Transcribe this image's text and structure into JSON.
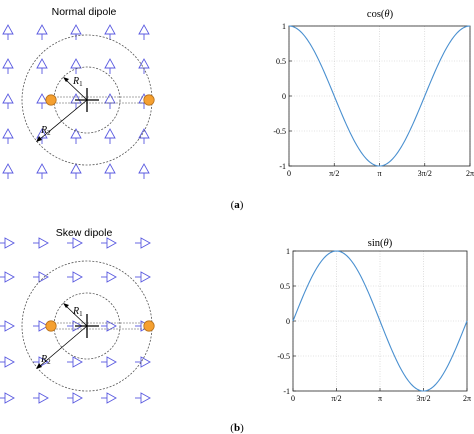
{
  "panels": [
    {
      "caption_open": "(",
      "caption_letter": "a",
      "caption_close": ")",
      "dipole_title": "Normal dipole",
      "arrow_direction": "up",
      "radius_labels": [
        {
          "letter": "R",
          "sub": "1"
        },
        {
          "letter": "R",
          "sub": "2"
        }
      ],
      "plot": {
        "title_pre": "cos(",
        "title_sym": "θ",
        "title_post": ")",
        "x_tick_labels": [
          "0",
          "π/2",
          "π",
          "3π/2",
          "2π"
        ],
        "y_tick_labels": [
          "1",
          "0.5",
          "0",
          "-0.5",
          "-1"
        ]
      }
    },
    {
      "caption_open": "(",
      "caption_letter": "b",
      "caption_close": ")",
      "dipole_title": "Skew dipole",
      "arrow_direction": "right",
      "radius_labels": [
        {
          "letter": "R",
          "sub": "1"
        },
        {
          "letter": "R",
          "sub": "2"
        }
      ],
      "plot": {
        "title_pre": "sin(",
        "title_sym": "θ",
        "title_post": ")",
        "x_tick_labels": [
          "0",
          "π/2",
          "π",
          "3π/2",
          "2π"
        ],
        "y_tick_labels": [
          "1",
          "0.5",
          "0",
          "-0.5",
          "-1"
        ]
      }
    }
  ],
  "chart_data": [
    {
      "type": "line",
      "title": "cos(θ)",
      "function": "cos",
      "xlim": [
        0,
        6.2832
      ],
      "ylim": [
        -1,
        1
      ],
      "x_ticks": [
        0,
        1.5708,
        3.1416,
        4.7124,
        6.2832
      ],
      "x_tick_labels": [
        "0",
        "π/2",
        "π",
        "3π/2",
        "2π"
      ],
      "y_ticks": [
        1,
        0.5,
        0,
        -0.5,
        -1
      ],
      "grid": true,
      "color": "#4a90d0",
      "x": [
        0,
        0.7854,
        1.5708,
        2.3562,
        3.1416,
        3.927,
        4.7124,
        5.4978,
        6.2832
      ],
      "y": [
        1,
        0.707,
        0,
        -0.707,
        -1,
        -0.707,
        0,
        0.707,
        1
      ]
    },
    {
      "type": "line",
      "title": "sin(θ)",
      "function": "sin",
      "xlim": [
        0,
        6.2832
      ],
      "ylim": [
        -1,
        1
      ],
      "x_ticks": [
        0,
        1.5708,
        3.1416,
        4.7124,
        6.2832
      ],
      "x_tick_labels": [
        "0",
        "π/2",
        "π",
        "3π/2",
        "2π"
      ],
      "y_ticks": [
        1,
        0.5,
        0,
        -0.5,
        -1
      ],
      "grid": true,
      "color": "#4a90d0",
      "x": [
        0,
        0.7854,
        1.5708,
        2.3562,
        3.1416,
        3.927,
        4.7124,
        5.4978,
        6.2832
      ],
      "y": [
        0,
        0.707,
        1,
        0.707,
        0,
        -0.707,
        -1,
        -0.707,
        0
      ]
    }
  ],
  "colors": {
    "arrow": "#5a5ae0",
    "pole_fill": "#f5a030",
    "pole_stroke": "#b8701a",
    "curve": "#4a90d0",
    "grid": "#c8c8c8",
    "axis": "#262626"
  },
  "icons": [
    "dipole-field-arrow-icon",
    "pole-marker-icon",
    "center-cross-icon"
  ]
}
